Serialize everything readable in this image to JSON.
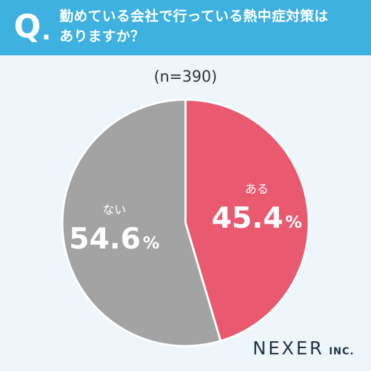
{
  "header": {
    "q_letter": "Q",
    "q_dot": ".",
    "question_line1": "勤めている会社で行っている熱中症対策は",
    "question_line2": "ありますか？"
  },
  "sample_size": "(n=390)",
  "colors": {
    "header_bg": "#3eb1e0",
    "page_bg": "#eef6fb",
    "yes_slice": "#e95a71",
    "no_slice": "#a3a3a3"
  },
  "chart_data": {
    "type": "pie",
    "start": "12 o'clock",
    "direction": "clockwise",
    "slices": [
      {
        "label": "ある",
        "value": 45.4,
        "number": "45.4",
        "unit": "%",
        "color": "#e95a71"
      },
      {
        "label": "ない",
        "value": 54.6,
        "number": "54.6",
        "unit": "%",
        "color": "#a3a3a3"
      }
    ]
  },
  "logo": {
    "main": "NEXER",
    "sub": "INC."
  }
}
